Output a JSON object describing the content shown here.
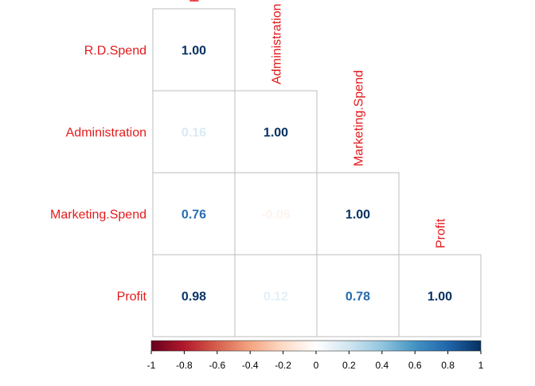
{
  "chart_data": {
    "type": "heatmap",
    "title": "",
    "variables": [
      "R.D.Spend",
      "Administration",
      "Marketing.Spend",
      "Profit"
    ],
    "matrix": [
      [
        1.0,
        null,
        null,
        null
      ],
      [
        0.16,
        1.0,
        null,
        null
      ],
      [
        0.76,
        -0.06,
        1.0,
        null
      ],
      [
        0.98,
        0.12,
        0.78,
        1.0
      ]
    ],
    "value_format": "0.00",
    "lower_triangle_only": true,
    "color_scale": {
      "min": -1,
      "max": 1,
      "ticks": [
        "-1",
        "-0.8",
        "-0.6",
        "-0.4",
        "-0.2",
        "0",
        "0.2",
        "0.4",
        "0.6",
        "0.8",
        "1"
      ],
      "stops": [
        {
          "value": -1.0,
          "color": "#67001F"
        },
        {
          "value": -0.8,
          "color": "#B2182B"
        },
        {
          "value": -0.6,
          "color": "#D6604D"
        },
        {
          "value": -0.4,
          "color": "#F4A582"
        },
        {
          "value": -0.2,
          "color": "#FDDBC7"
        },
        {
          "value": 0.0,
          "color": "#FFFFFF"
        },
        {
          "value": 0.2,
          "color": "#D1E5F0"
        },
        {
          "value": 0.4,
          "color": "#92C5DE"
        },
        {
          "value": 0.6,
          "color": "#4393C3"
        },
        {
          "value": 0.8,
          "color": "#2166AC"
        },
        {
          "value": 1.0,
          "color": "#053061"
        }
      ]
    },
    "legend_position": "bottom",
    "label_color": "#E41A1C",
    "grid_color": "#BEBEBE"
  }
}
